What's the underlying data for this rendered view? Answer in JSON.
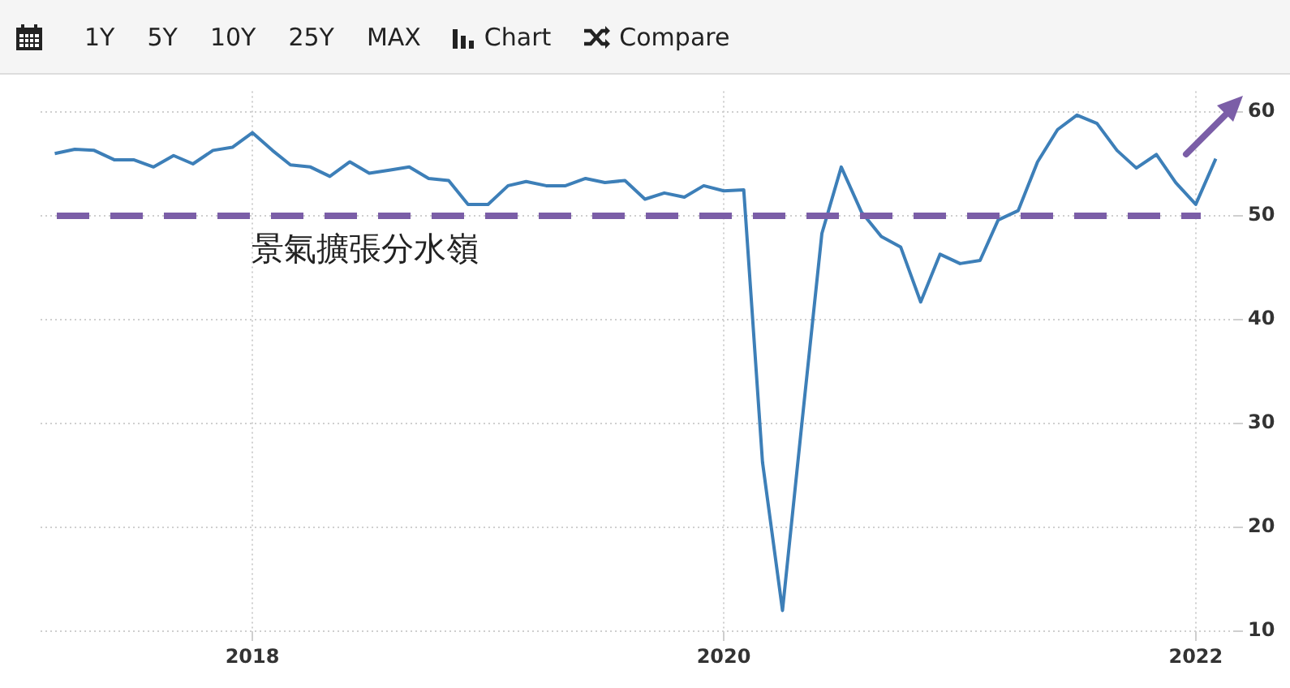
{
  "chart_data": {
    "type": "line",
    "annotations": [
      "1Y",
      "5Y",
      "10Y",
      "25Y",
      "MAX",
      "Chart",
      "Compare"
    ],
    "x": [
      "2017-03",
      "2017-04",
      "2017-05",
      "2017-06",
      "2017-07",
      "2017-08",
      "2017-09",
      "2017-10",
      "2017-11",
      "2017-12",
      "2018-01",
      "2018-02",
      "2018-03",
      "2018-04",
      "2018-05",
      "2018-06",
      "2018-07",
      "2018-08",
      "2018-09",
      "2018-10",
      "2018-11",
      "2018-12",
      "2019-01",
      "2019-02",
      "2019-03",
      "2019-04",
      "2019-05",
      "2019-06",
      "2019-07",
      "2019-08",
      "2019-09",
      "2019-10",
      "2019-11",
      "2019-12",
      "2020-01",
      "2020-02",
      "2020-03",
      "2020-04",
      "2020-05",
      "2020-06",
      "2020-07",
      "2020-08",
      "2020-09",
      "2020-10",
      "2020-11",
      "2020-12",
      "2021-01",
      "2021-02",
      "2021-03",
      "2021-04",
      "2021-05",
      "2021-06",
      "2021-07",
      "2021-08",
      "2021-09",
      "2021-10",
      "2021-11",
      "2021-12",
      "2022-01",
      "2022-02"
    ],
    "series": [
      {
        "color": "#3d7fb8",
        "values": [
          56.0,
          56.4,
          56.3,
          55.4,
          55.4,
          54.7,
          55.8,
          55.0,
          56.3,
          56.6,
          58.0,
          56.3,
          54.9,
          54.7,
          53.8,
          55.2,
          54.1,
          54.4,
          54.7,
          53.6,
          53.4,
          51.1,
          51.1,
          52.9,
          53.3,
          52.9,
          52.9,
          53.6,
          53.2,
          53.4,
          51.6,
          52.2,
          51.8,
          52.9,
          52.4,
          52.5,
          26.3,
          12.0,
          30.0,
          48.3,
          54.7,
          50.4,
          48.0,
          47.0,
          41.7,
          46.3,
          45.4,
          45.7,
          49.6,
          50.5,
          55.2,
          58.3,
          59.7,
          58.9,
          56.3,
          54.6,
          55.9,
          53.2,
          51.1,
          55.5
        ]
      }
    ],
    "xlim": [
      "2017-02-07",
      "2022-02-28"
    ],
    "xticks": [
      {
        "value": "2018-01",
        "label": "2018"
      },
      {
        "value": "2020-01",
        "label": "2020"
      },
      {
        "value": "2022-01",
        "label": "2022"
      }
    ],
    "ylim": [
      10,
      62
    ],
    "yticks": [
      10,
      20,
      30,
      40,
      50,
      60
    ],
    "ref_lines": [
      {
        "axis": "y",
        "value": 50,
        "label": "景氣擴張分水嶺",
        "color": "#7b5ea7",
        "line_style": "dashed"
      }
    ],
    "grid": true,
    "line_style": "solid"
  }
}
